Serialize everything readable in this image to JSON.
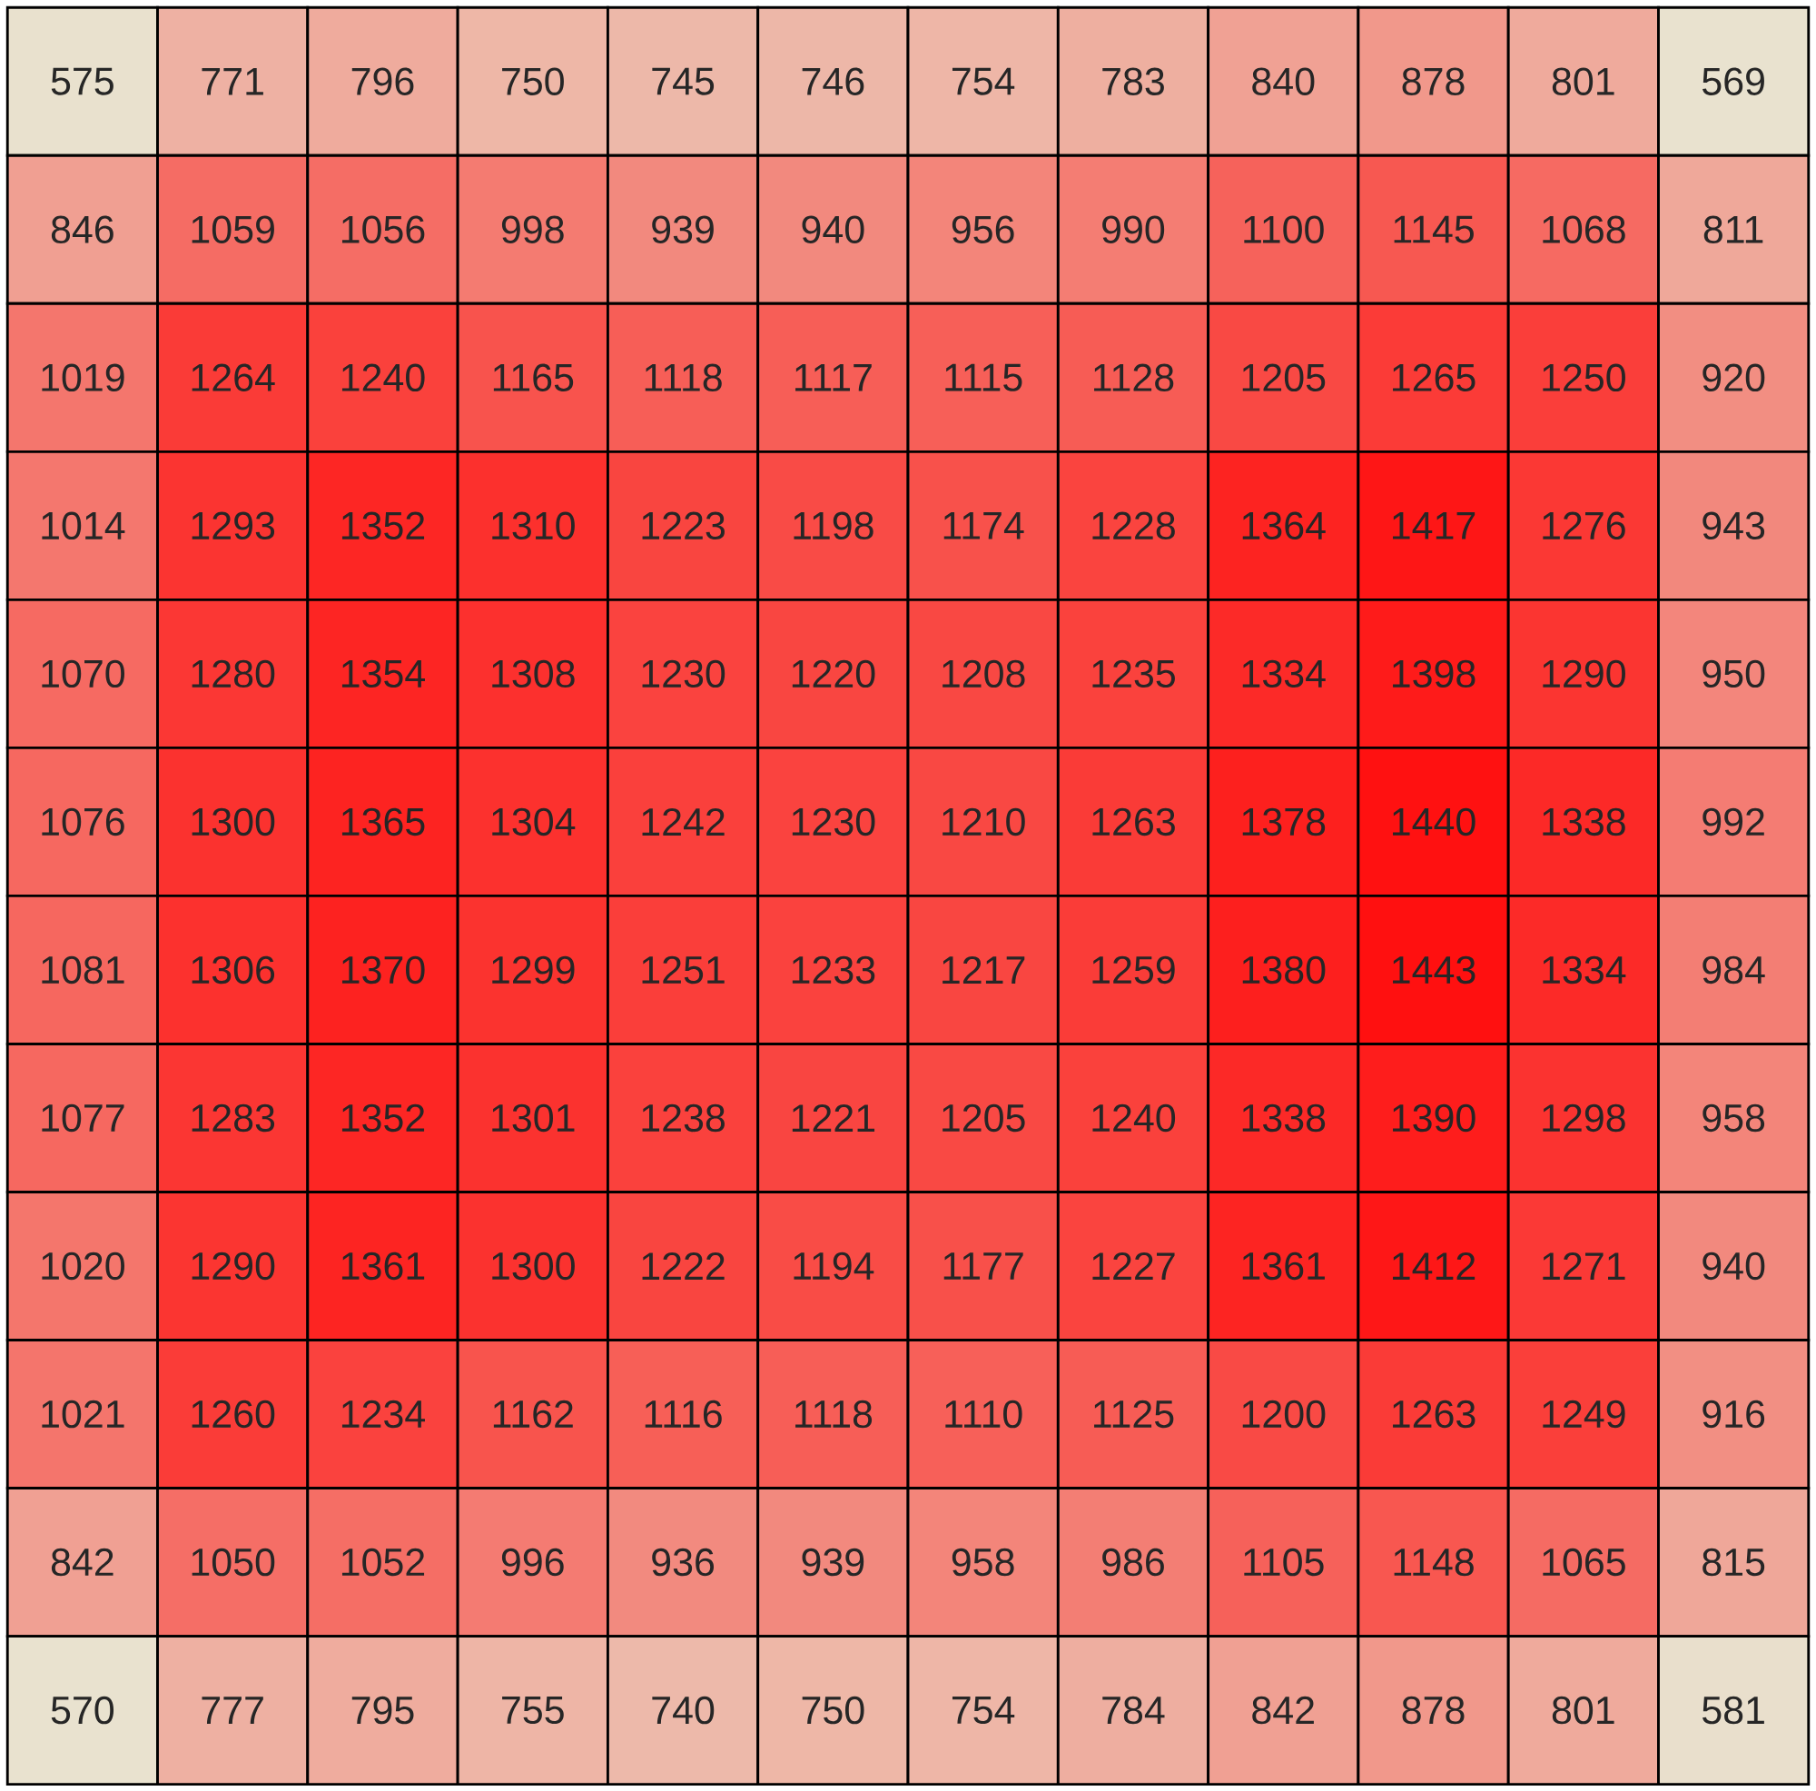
{
  "chart_data": {
    "type": "heatmap",
    "data_labels": true,
    "categories": [
      null,
      null,
      null,
      null,
      null,
      null,
      null,
      null,
      null,
      null,
      null,
      null
    ],
    "y_categories": [
      null,
      null,
      null,
      null,
      null,
      null,
      null,
      null,
      null,
      null,
      null,
      null
    ],
    "cells": [
      [
        575,
        771,
        796,
        750,
        745,
        746,
        754,
        783,
        840,
        878,
        801,
        569
      ],
      [
        846,
        1059,
        1056,
        998,
        939,
        940,
        956,
        990,
        1100,
        1145,
        1068,
        811
      ],
      [
        1019,
        1264,
        1240,
        1165,
        1118,
        1117,
        1115,
        1128,
        1205,
        1265,
        1250,
        920
      ],
      [
        1014,
        1293,
        1352,
        1310,
        1223,
        1198,
        1174,
        1228,
        1364,
        1417,
        1276,
        943
      ],
      [
        1070,
        1280,
        1354,
        1308,
        1230,
        1220,
        1208,
        1235,
        1334,
        1398,
        1290,
        950
      ],
      [
        1076,
        1300,
        1365,
        1304,
        1242,
        1230,
        1210,
        1263,
        1378,
        1440,
        1338,
        992
      ],
      [
        1081,
        1306,
        1370,
        1299,
        1251,
        1233,
        1217,
        1259,
        1380,
        1443,
        1334,
        984
      ],
      [
        1077,
        1283,
        1352,
        1301,
        1238,
        1221,
        1205,
        1240,
        1338,
        1390,
        1298,
        958
      ],
      [
        1020,
        1290,
        1361,
        1300,
        1222,
        1194,
        1177,
        1227,
        1361,
        1412,
        1271,
        940
      ],
      [
        1021,
        1260,
        1234,
        1162,
        1116,
        1118,
        1110,
        1125,
        1200,
        1263,
        1249,
        916
      ],
      [
        842,
        1050,
        1052,
        996,
        936,
        939,
        958,
        986,
        1105,
        1148,
        1065,
        815
      ],
      [
        570,
        777,
        795,
        755,
        740,
        750,
        754,
        784,
        842,
        878,
        801,
        581
      ]
    ]
  }
}
